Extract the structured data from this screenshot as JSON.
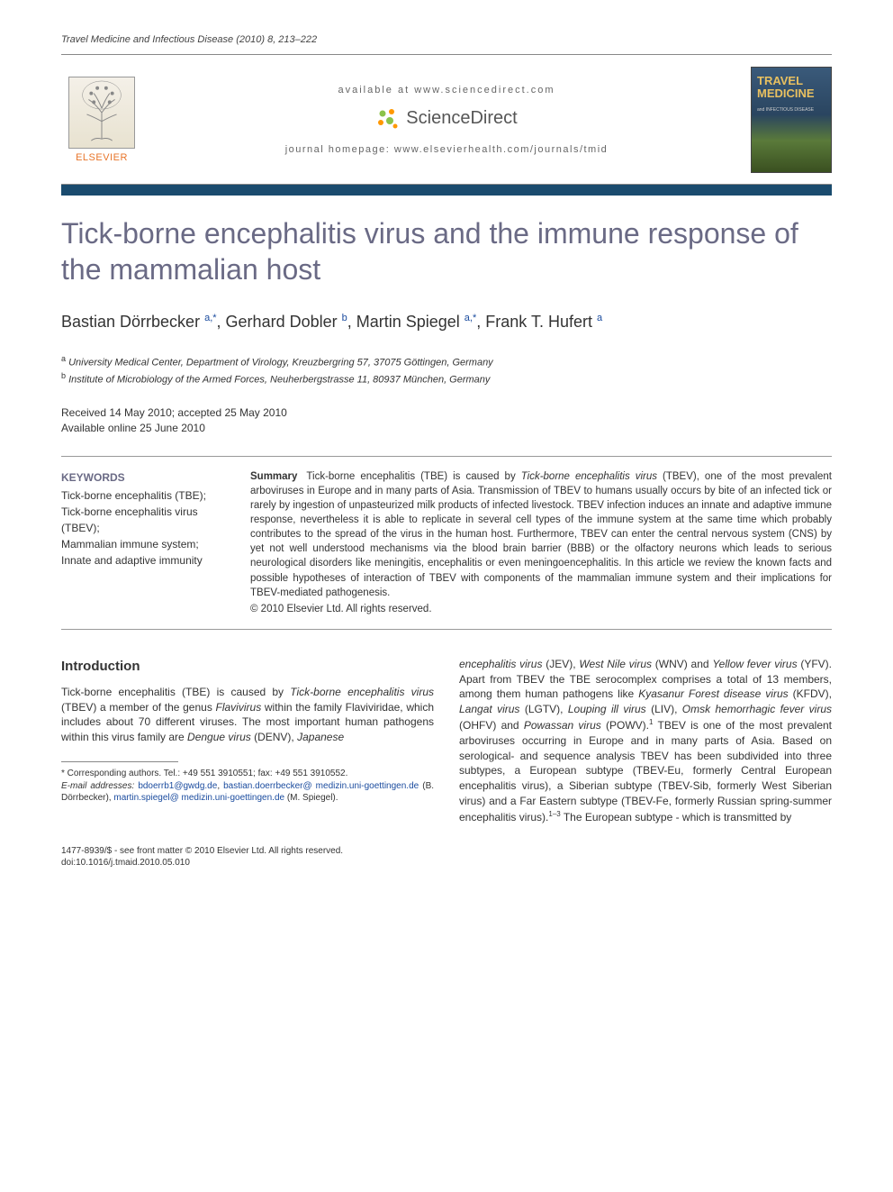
{
  "citation": "Travel Medicine and Infectious Disease (2010) 8, 213–222",
  "header": {
    "available_at": "available at www.sciencedirect.com",
    "sciencedirect": "ScienceDirect",
    "journal_homepage": "journal homepage: www.elsevierhealth.com/journals/tmid",
    "elsevier": "ELSEVIER",
    "cover_title": "TRAVEL MEDICINE",
    "cover_sub": "and INFECTIOUS DISEASE"
  },
  "colors": {
    "bar": "#1a4b6e",
    "title": "#6a6a85",
    "link": "#1a4b9e",
    "elsevier_orange": "#e8752a",
    "sd_green": "#8bc34a",
    "sd_orange": "#ff9800"
  },
  "title": "Tick-borne encephalitis virus and the immune response of the mammalian host",
  "authors_html": "Bastian Dörrbecker <sup class='author-link'>a,*</sup>, Gerhard Dobler <sup class='author-link'>b</sup>, Martin Spiegel <sup class='author-link'>a,*</sup>, Frank T. Hufert <sup class='author-link'>a</sup>",
  "affiliations": [
    {
      "sup": "a",
      "text": "University Medical Center, Department of Virology, Kreuzbergring 57, 37075 Göttingen, Germany"
    },
    {
      "sup": "b",
      "text": "Institute of Microbiology of the Armed Forces, Neuherbergstrasse 11, 80937 München, Germany"
    }
  ],
  "dates": {
    "received": "Received 14 May 2010; accepted 25 May 2010",
    "online": "Available online 25 June 2010"
  },
  "keywords": {
    "title": "KEYWORDS",
    "items": [
      "Tick-borne encephalitis (TBE);",
      "Tick-borne encephalitis virus (TBEV);",
      "Mammalian immune system;",
      "Innate and adaptive immunity"
    ]
  },
  "abstract": {
    "label": "Summary",
    "text": "Tick-borne encephalitis (TBE) is caused by <span class='italic'>Tick-borne encephalitis virus</span> (TBEV), one of the most prevalent arboviruses in Europe and in many parts of Asia. Transmission of TBEV to humans usually occurs by bite of an infected tick or rarely by ingestion of unpasteurized milk products of infected livestock. TBEV infection induces an innate and adaptive immune response, nevertheless it is able to replicate in several cell types of the immune system at the same time which probably contributes to the spread of the virus in the human host. Furthermore, TBEV can enter the central nervous system (CNS) by yet not well understood mechanisms via the blood brain barrier (BBB) or the olfactory neurons which leads to serious neurological disorders like meningitis, encephalitis or even meningoencephalitis. In this article we review the known facts and possible hypotheses of interaction of TBEV with components of the mammalian immune system and their implications for TBEV-mediated pathogenesis.",
    "copyright": "© 2010 Elsevier Ltd. All rights reserved."
  },
  "intro": {
    "heading": "Introduction",
    "col1": "Tick-borne encephalitis (TBE) is caused by <span class='italic'>Tick-borne encephalitis virus</span> (TBEV) a member of the genus <span class='italic'>Flavivirus</span> within the family Flaviviridae, which includes about 70 different viruses. The most important human pathogens within this virus family are <span class='italic'>Dengue virus</span> (DENV), <span class='italic'>Japanese</span>",
    "col2": "<span class='italic'>encephalitis virus</span> (JEV), <span class='italic'>West Nile virus</span> (WNV) and <span class='italic'>Yellow fever virus</span> (YFV). Apart from TBEV the TBE serocomplex comprises a total of 13 members, among them human pathogens like <span class='italic'>Kyasanur Forest disease virus</span> (KFDV), <span class='italic'>Langat virus</span> (LGTV), <span class='italic'>Louping ill virus</span> (LIV), <span class='italic'>Omsk hemorrhagic fever virus</span> (OHFV) and <span class='italic'>Powassan virus</span> (POWV).<span class='ref-sup'>1</span> TBEV is one of the most prevalent arboviruses occurring in Europe and in many parts of Asia. Based on serological- and sequence analysis TBEV has been subdivided into three subtypes, a European subtype (TBEV-Eu, formerly Central European encephalitis virus), a Siberian subtype (TBEV-Sib, formerly West Siberian virus) and a Far Eastern subtype (TBEV-Fe, formerly Russian spring-summer encephalitis virus).<span class='ref-sup'>1–3</span> The European subtype - which is transmitted by"
  },
  "footnotes": {
    "corresponding": "* Corresponding authors. Tel.: +49 551 3910551; fax: +49 551 3910552.",
    "email_label": "E-mail addresses:",
    "emails": "<span class='email'>bdoerrb1@gwdg.de</span>, <span class='email'>bastian.doerrbecker@ medizin.uni-goettingen.de</span> (B. Dörrbecker), <span class='email'>martin.spiegel@ medizin.uni-goettingen.de</span> (M. Spiegel)."
  },
  "footer": {
    "line1": "1477-8939/$ - see front matter © 2010 Elsevier Ltd. All rights reserved.",
    "line2": "doi:10.1016/j.tmaid.2010.05.010"
  }
}
